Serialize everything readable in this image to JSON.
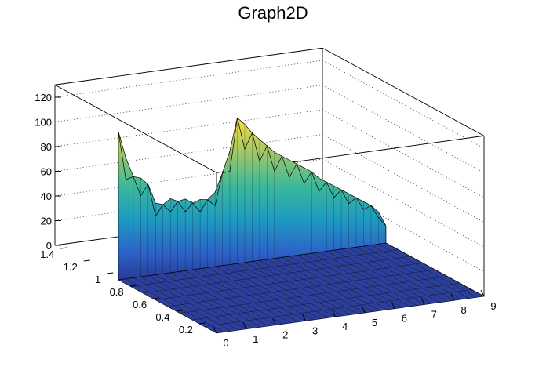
{
  "chart_data": {
    "type": "surface",
    "title": "Graph2D",
    "x_ticks": [
      "0",
      "1",
      "2",
      "3",
      "4",
      "5",
      "6",
      "7",
      "8",
      "9"
    ],
    "y_ticks": [
      "0.2",
      "0.4",
      "0.6",
      "0.8",
      "1",
      "1.2",
      "1.4"
    ],
    "z_ticks": [
      "0",
      "20",
      "40",
      "60",
      "80",
      "100",
      "120"
    ],
    "xlim": [
      0,
      9
    ],
    "ylim": [
      0.05,
      1.45
    ],
    "zlim": [
      0,
      130
    ],
    "grid": true,
    "colormap": "viridis-like (blue to yellow)",
    "surface_front_y": 0.9,
    "x_samples": [
      0,
      0.25,
      0.5,
      0.75,
      1,
      1.25,
      1.5,
      1.75,
      2,
      2.25,
      2.5,
      2.75,
      3,
      3.25,
      3.5,
      3.75,
      4,
      4.25,
      4.5,
      4.75,
      5,
      5.25,
      5.5,
      5.75,
      6,
      6.25,
      6.5,
      6.75,
      7,
      7.25,
      7.5,
      7.75,
      8,
      8.25,
      8.5,
      8.75,
      9
    ],
    "z_samples": [
      120,
      98,
      82,
      80,
      74,
      58,
      56,
      60,
      57,
      58,
      54,
      56,
      55,
      60,
      75,
      92,
      118,
      112,
      104,
      98,
      92,
      86,
      82,
      78,
      74,
      70,
      66,
      60,
      56,
      52,
      48,
      44,
      40,
      36,
      32,
      26,
      14
    ]
  }
}
